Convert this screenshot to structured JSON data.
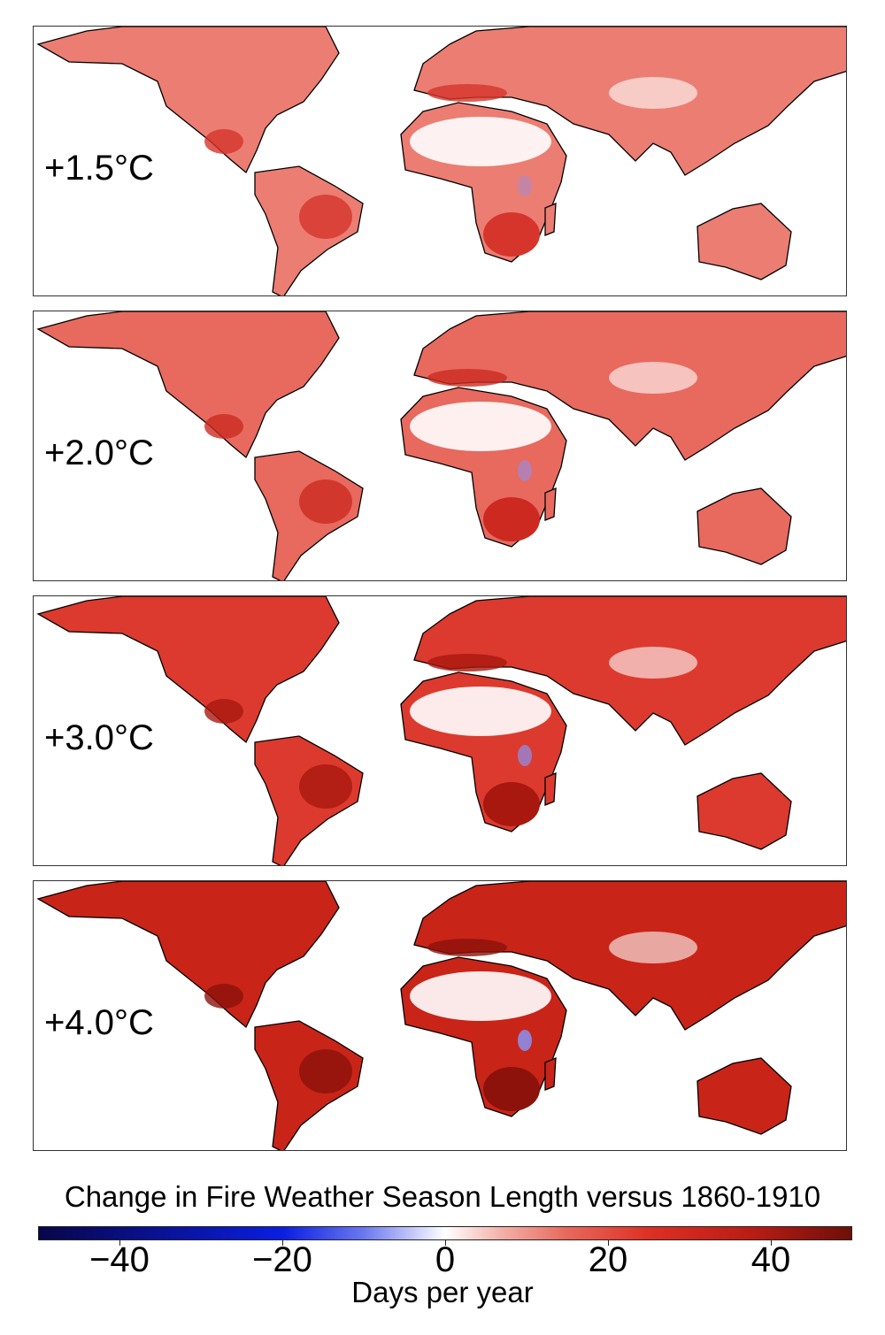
{
  "panels": [
    {
      "label": "+1.5°C",
      "land_color": "#ec7d72",
      "hot_color": "#d6352b",
      "warming_c": 1.5
    },
    {
      "label": "+2.0°C",
      "land_color": "#e8695e",
      "hot_color": "#cc2a20",
      "warming_c": 2.0
    },
    {
      "label": "+3.0°C",
      "land_color": "#dc3a2e",
      "hot_color": "#a9180f",
      "warming_c": 3.0
    },
    {
      "label": "+4.0°C",
      "land_color": "#c92418",
      "hot_color": "#8c120b",
      "warming_c": 4.0
    }
  ],
  "colorbar": {
    "title": "Change in Fire Weather Season Length versus 1860-1910",
    "label": "Days per year",
    "range": [
      -50,
      50
    ],
    "ticks": [
      {
        "v": -40,
        "t": "−40"
      },
      {
        "v": -20,
        "t": "−20"
      },
      {
        "v": 0,
        "t": "0"
      },
      {
        "v": 20,
        "t": "20"
      },
      {
        "v": 40,
        "t": "40"
      }
    ],
    "colormap": "blue-white-red diverging",
    "negative_color": "#0a1ee0",
    "neutral_color": "#ffffff",
    "positive_color": "#de3024"
  }
}
